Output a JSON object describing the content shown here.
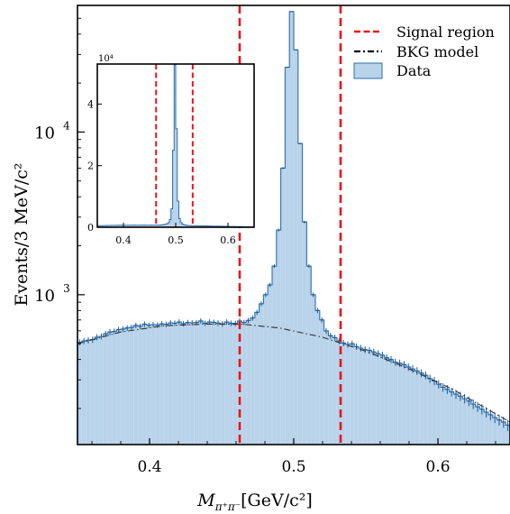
{
  "chart_data": {
    "type": "histogram",
    "ylabel": "Events/3 MeV/c²",
    "xlabel_main": "M",
    "xlabel_sub": "π⁺π⁻",
    "xlabel_unit": "[GeV/c²]",
    "xlim": [
      0.35,
      0.65
    ],
    "ylim": [
      120,
      60000
    ],
    "yscale": "log",
    "x_ticks": [
      "0.4",
      "0.5",
      "0.6"
    ],
    "y_ticks": [
      {
        "base": "10",
        "exp": "3",
        "value": 1000
      },
      {
        "base": "10",
        "exp": "4",
        "value": 10000
      }
    ],
    "signal_region": [
      0.4625,
      0.5325
    ],
    "legend": {
      "position": "top-right",
      "entries": [
        {
          "label": "Signal region",
          "style": "dashed",
          "color": "#e8141c"
        },
        {
          "label": "BKG model",
          "style": "dashdot",
          "color": "#000000"
        },
        {
          "label": "Data",
          "style": "patch",
          "color": "#b8d3ea"
        }
      ]
    },
    "series": [
      {
        "name": "Data",
        "bin_width": 0.003,
        "x": [
          0.3515,
          0.3545,
          0.3575,
          0.3605,
          0.3635,
          0.3665,
          0.3695,
          0.3725,
          0.3755,
          0.3785,
          0.3815,
          0.3845,
          0.3875,
          0.3905,
          0.3935,
          0.3965,
          0.3995,
          0.4025,
          0.4055,
          0.4085,
          0.4115,
          0.4145,
          0.4175,
          0.4205,
          0.4235,
          0.4265,
          0.4295,
          0.4325,
          0.4355,
          0.4385,
          0.4415,
          0.4445,
          0.4475,
          0.4505,
          0.4535,
          0.4565,
          0.4595,
          0.4625,
          0.4655,
          0.4685,
          0.4715,
          0.4745,
          0.4775,
          0.4805,
          0.4835,
          0.4865,
          0.4895,
          0.4925,
          0.4955,
          0.4985,
          0.5015,
          0.5045,
          0.5075,
          0.5105,
          0.5135,
          0.5165,
          0.5195,
          0.5225,
          0.5255,
          0.5285,
          0.5315,
          0.5345,
          0.5375,
          0.5405,
          0.5435,
          0.5465,
          0.5495,
          0.5525,
          0.5555,
          0.5585,
          0.5615,
          0.5645,
          0.5675,
          0.5705,
          0.5735,
          0.5765,
          0.5795,
          0.5825,
          0.5855,
          0.5885,
          0.5915,
          0.5945,
          0.5975,
          0.6005,
          0.6035,
          0.6065,
          0.6095,
          0.6125,
          0.6155,
          0.6185,
          0.6215,
          0.6245,
          0.6275,
          0.6305,
          0.6335,
          0.6365,
          0.6395,
          0.6425,
          0.6455,
          0.6485
        ],
        "values": [
          510,
          520,
          525,
          530,
          548,
          555,
          575,
          590,
          595,
          610,
          615,
          625,
          630,
          648,
          640,
          660,
          650,
          655,
          652,
          662,
          658,
          672,
          668,
          680,
          664,
          675,
          672,
          675,
          690,
          668,
          680,
          677,
          670,
          662,
          680,
          668,
          667,
          690,
          675,
          695,
          720,
          780,
          880,
          1000,
          1150,
          1500,
          2500,
          6000,
          25000,
          55000,
          32000,
          8500,
          2800,
          1500,
          1000,
          800,
          700,
          600,
          560,
          545,
          520,
          505,
          495,
          500,
          480,
          470,
          460,
          455,
          445,
          435,
          425,
          410,
          400,
          385,
          380,
          372,
          360,
          350,
          340,
          330,
          320,
          305,
          295,
          282,
          270,
          262,
          253,
          245,
          238,
          230,
          222,
          213,
          205,
          198,
          190,
          183,
          176,
          170,
          165,
          158
        ]
      },
      {
        "name": "BKG model",
        "x": [
          0.35,
          0.38,
          0.41,
          0.44,
          0.465,
          0.49,
          0.52,
          0.55,
          0.58,
          0.61,
          0.65
        ],
        "values": [
          500,
          590,
          645,
          660,
          658,
          625,
          548,
          450,
          350,
          263,
          165
        ]
      }
    ],
    "inset": {
      "type": "histogram",
      "xlim": [
        0.35,
        0.65
      ],
      "ylim": [
        0,
        53000
      ],
      "yscale": "linear",
      "x_ticks": [
        "0.4",
        "0.5",
        "0.6"
      ],
      "y_ticks": [
        "0",
        "2",
        "4"
      ],
      "y_multiplier": "10⁴",
      "signal_region": [
        0.4625,
        0.5325
      ]
    }
  }
}
